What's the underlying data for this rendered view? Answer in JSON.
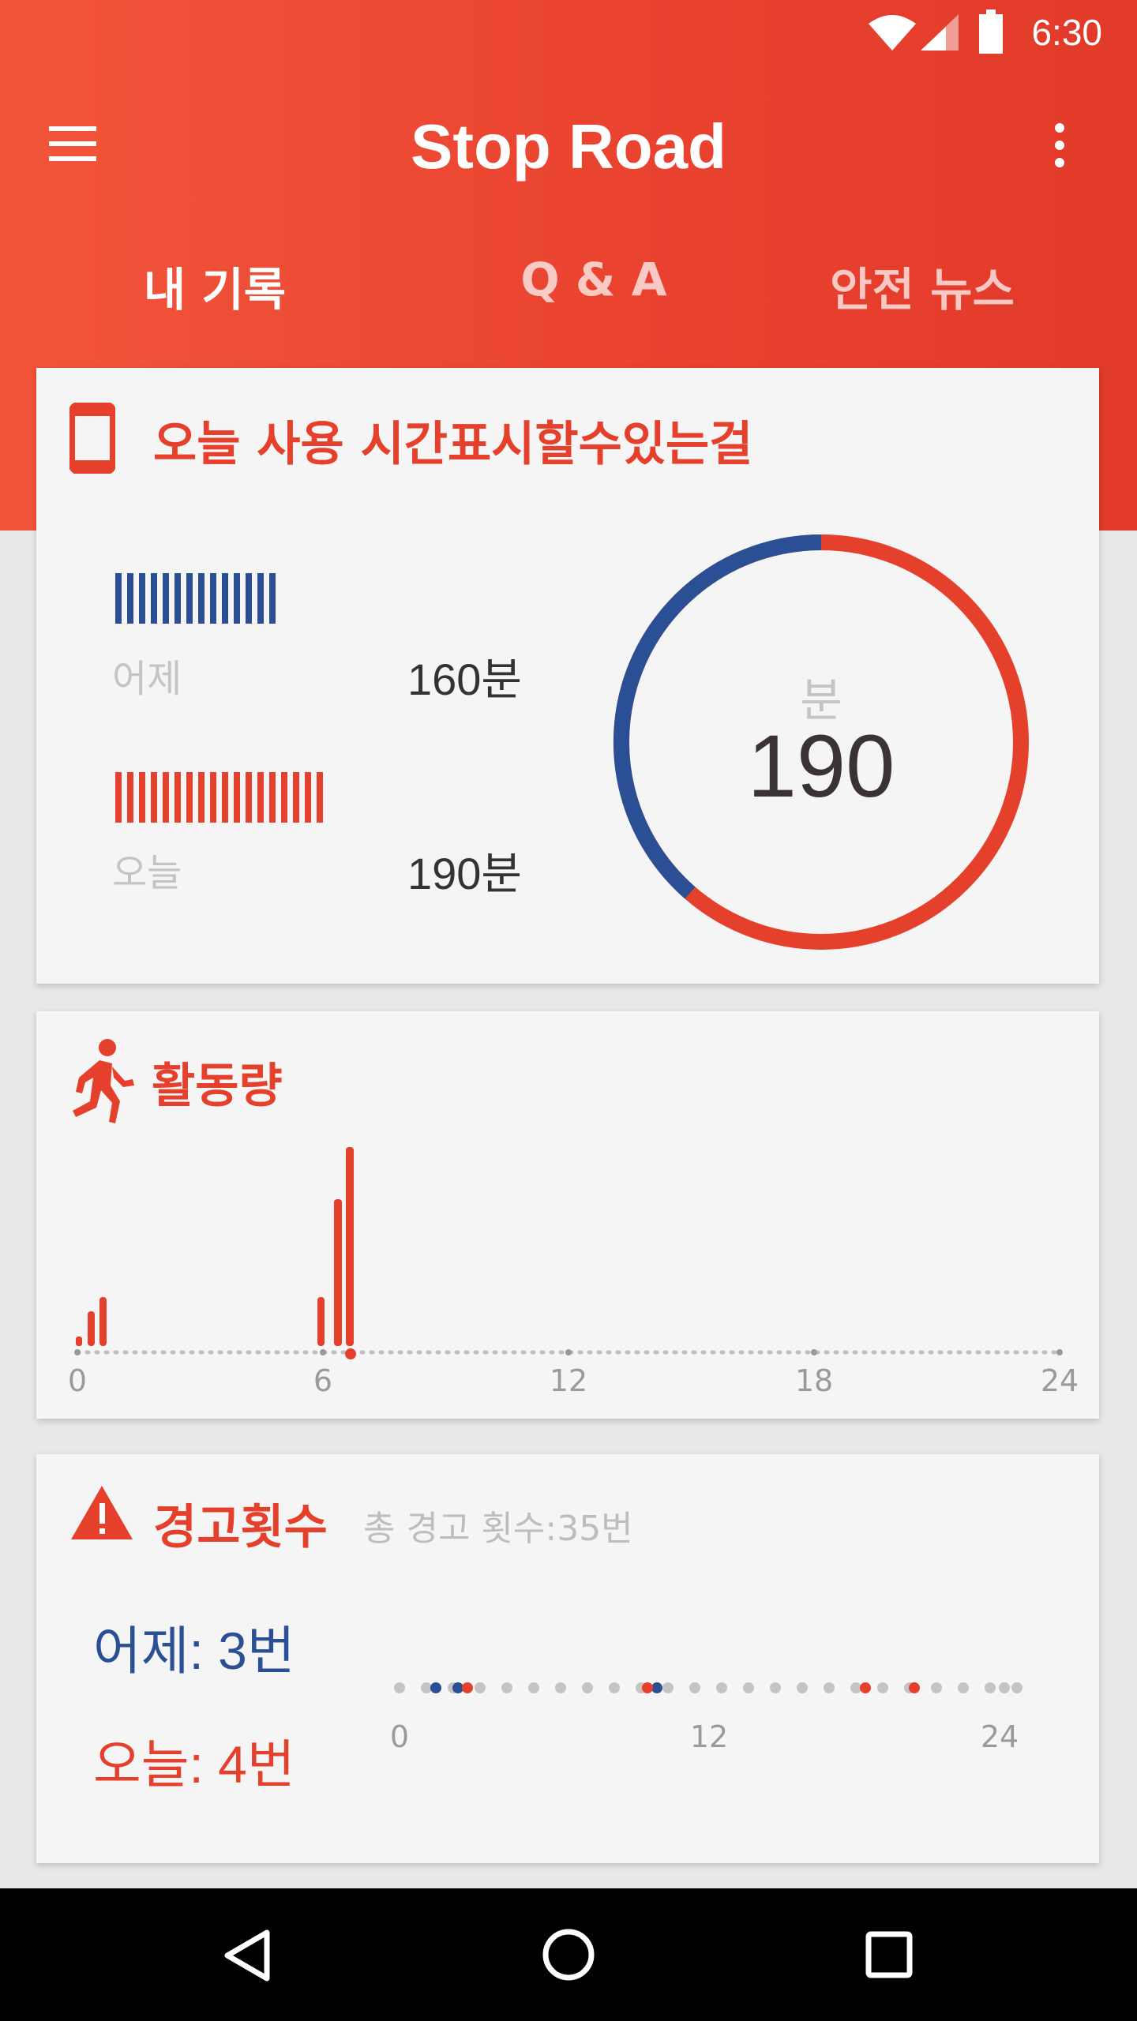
{
  "status_bar": {
    "time": "6:30"
  },
  "app_bar": {
    "title": "Stop Road"
  },
  "tabs": [
    {
      "label": "내 기록",
      "active": true
    },
    {
      "label": "Q & A",
      "active": false
    },
    {
      "label": "안전 뉴스",
      "active": false
    }
  ],
  "usage_card": {
    "title": "오늘 사용 시간표시할수있는걸",
    "rows": [
      {
        "label": "어제",
        "value": "160분",
        "color": "#2b4f95"
      },
      {
        "label": "오늘",
        "value": "190분",
        "color": "#e5402b"
      }
    ],
    "ring": {
      "unit": "분",
      "value": "190"
    }
  },
  "activity_card": {
    "title": "활동량",
    "axis_ticks": [
      "0",
      "6",
      "12",
      "18",
      "24"
    ]
  },
  "warning_card": {
    "title": "경고횟수",
    "subtitle": "총 경고 횟수:35번",
    "yesterday": "어제: 3번",
    "today": "오늘: 4번",
    "axis_ticks": [
      "0",
      "12",
      "24"
    ]
  },
  "colors": {
    "accent": "#e5402b",
    "blue": "#2b4f95",
    "gray": "#c4c4c4"
  }
}
